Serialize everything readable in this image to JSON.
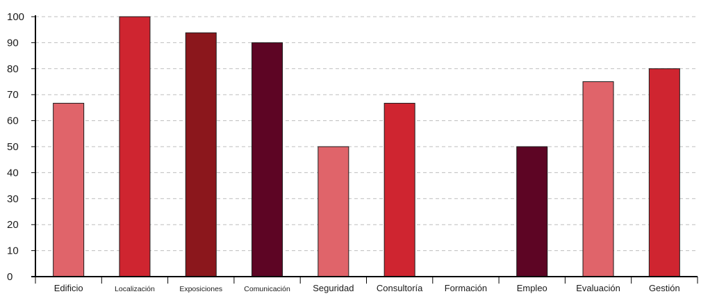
{
  "chart_data": {
    "type": "bar",
    "title": "",
    "xlabel": "",
    "ylabel": "",
    "ylim": [
      0,
      100
    ],
    "yticks": [
      0,
      10,
      20,
      30,
      40,
      50,
      60,
      70,
      80,
      90,
      100
    ],
    "grid": true,
    "legend": "none",
    "categories": [
      "Edificio",
      "Localización",
      "Exposiciones",
      "Comunicación",
      "Seguridad",
      "Consultoría",
      "Formación",
      "Empleo",
      "Evaluación",
      "Gestión"
    ],
    "values": [
      66.7,
      100,
      93.8,
      90,
      50,
      66.7,
      0,
      50,
      75,
      80
    ],
    "colors": [
      "#e0646a",
      "#cf2530",
      "#8b171c",
      "#5d0524",
      "#e0646a",
      "#cf2530",
      "#8b171c",
      "#5d0524",
      "#e0646a",
      "#cf2530"
    ]
  }
}
